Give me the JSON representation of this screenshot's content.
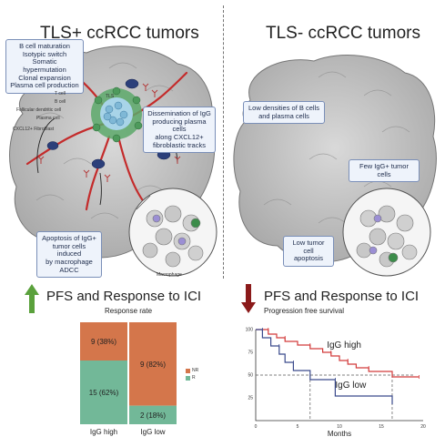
{
  "left_panel": {
    "title": "TLS+ ccRCC tumors",
    "callout_bcell": [
      "B cell maturation",
      "Isotypic switch",
      "Somatic",
      "hypermutation",
      "Clonal expansion",
      "Plasma cell production"
    ],
    "callout_dissemination": [
      "Dissemination of IgG",
      "producing plasma cells",
      "along CXCL12+",
      "fibroblastic tracks"
    ],
    "callout_apoptosis": [
      "Apoptosis of IgG+",
      "tumor cells induced",
      "by macrophage ADCC"
    ],
    "cell_labels": {
      "tcell": "T cell",
      "bcell": "B cell",
      "fdc": "Follicular dendritic cell",
      "plasma": "Plasma cell",
      "fibro": "CXCL12+ Fibroblast",
      "tls": "TLS",
      "macro": "Macrophage"
    },
    "outcome": "PFS and Response to ICI",
    "arrow_color": "#5aa13c"
  },
  "right_panel": {
    "title": "TLS- ccRCC tumors",
    "callout_low_density": [
      "Low densities of B cells",
      "and plasma cells"
    ],
    "callout_few": [
      "Few IgG+ tumor cells"
    ],
    "callout_low_apoptosis": [
      "Low tumor cell",
      "apoptosis"
    ],
    "outcome": "PFS and Response to ICI",
    "arrow_color": "#8b1a1a"
  },
  "bar_chart": {
    "caption": "Response rate",
    "legend": [
      {
        "label": "NR",
        "color": "#d4764b"
      },
      {
        "label": "R",
        "color": "#72b898"
      }
    ],
    "groups": [
      {
        "label": "IgG high",
        "nr_label": "9 (38%)",
        "r_label": "15 (62%)",
        "nr": 9,
        "r": 15
      },
      {
        "label": "IgG low",
        "nr_label": "9 (82%)",
        "r_label": "2 (18%)",
        "nr": 9,
        "r": 2
      }
    ]
  },
  "chart_data": {
    "type": "line",
    "title": "Progression free survival",
    "xlabel": "Months",
    "ylabel": "",
    "xlim": [
      0,
      20
    ],
    "ylim": [
      0,
      100
    ],
    "x_ticks": [
      0,
      5,
      10,
      15,
      20
    ],
    "y_ticks": [
      25,
      50,
      75,
      100
    ],
    "series": [
      {
        "name": "IgG high",
        "color": "#d23a3a",
        "points": [
          [
            0,
            100
          ],
          [
            1.5,
            100
          ],
          [
            1.5,
            95
          ],
          [
            2.5,
            95
          ],
          [
            2.5,
            91
          ],
          [
            3.5,
            91
          ],
          [
            3.5,
            87
          ],
          [
            5,
            87
          ],
          [
            5,
            83
          ],
          [
            6.5,
            83
          ],
          [
            6.5,
            79
          ],
          [
            8,
            79
          ],
          [
            8,
            75
          ],
          [
            9,
            75
          ],
          [
            9,
            71
          ],
          [
            10,
            71
          ],
          [
            10,
            66
          ],
          [
            11,
            66
          ],
          [
            11,
            62
          ],
          [
            12,
            62
          ],
          [
            12,
            58
          ],
          [
            13.5,
            58
          ],
          [
            13.5,
            54
          ],
          [
            16.3,
            54
          ],
          [
            16.3,
            48
          ],
          [
            19.5,
            48
          ]
        ]
      },
      {
        "name": "IgG low",
        "color": "#3a4a8c",
        "points": [
          [
            0,
            100
          ],
          [
            0.8,
            100
          ],
          [
            0.8,
            91
          ],
          [
            1.8,
            91
          ],
          [
            1.8,
            82
          ],
          [
            2.8,
            82
          ],
          [
            2.8,
            73
          ],
          [
            3.5,
            73
          ],
          [
            3.5,
            64
          ],
          [
            4.5,
            64
          ],
          [
            4.5,
            55
          ],
          [
            6.5,
            55
          ],
          [
            6.5,
            45
          ],
          [
            9.5,
            45
          ],
          [
            9.5,
            27
          ],
          [
            16.3,
            27
          ],
          [
            16.3,
            18
          ]
        ]
      }
    ],
    "median_line": 50
  }
}
